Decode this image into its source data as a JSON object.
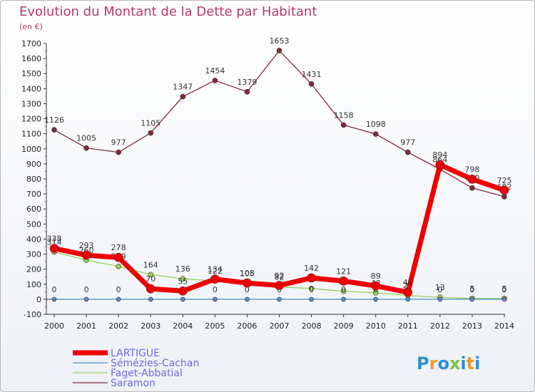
{
  "title": "Evolution du Montant de la Dette par Habitant",
  "subtitle": "(en €)",
  "brand": {
    "text": "Proxiti",
    "colors": [
      "#2d8fd6",
      "#f0972a",
      "#2d8fd6",
      "#7ec242",
      "#2d8fd6",
      "#f0972a",
      "#2d8fd6"
    ]
  },
  "chart_data": {
    "type": "line",
    "x": [
      "2000",
      "2001",
      "2002",
      "2003",
      "2004",
      "2005",
      "2006",
      "2007",
      "2008",
      "2009",
      "2010",
      "2011",
      "2012",
      "2013",
      "2014"
    ],
    "ylim": [
      -100,
      1700
    ],
    "yticks": [
      -100,
      0,
      100,
      200,
      300,
      400,
      500,
      600,
      700,
      800,
      900,
      1000,
      1100,
      1200,
      1300,
      1400,
      1500,
      1600,
      1700
    ],
    "grid": false,
    "legend": "bottom-left",
    "series": [
      {
        "name": "Saramon",
        "color": "#7b2f3b",
        "width": 1.3,
        "marker": 3.5,
        "labels": true,
        "values": [
          1126,
          1005,
          977,
          1105,
          1347,
          1454,
          1379,
          1653,
          1431,
          1158,
          1098,
          977,
          864,
          740,
          682
        ]
      },
      {
        "name": "Faget-Abbatial",
        "color": "#8fd45a",
        "width": 1.3,
        "marker": 3.5,
        "labels": true,
        "values": [
          314,
          260,
          219,
          164,
          136,
          122,
          105,
          82,
          72,
          53,
          43,
          25,
          13,
          5,
          5
        ]
      },
      {
        "name": "Sémézies-Cachan",
        "color": "#4d92c8",
        "width": 1.3,
        "marker": 3,
        "labels": true,
        "values": [
          0,
          0,
          0,
          0,
          0,
          0,
          0,
          0,
          0,
          0,
          0,
          0,
          0,
          0,
          0
        ]
      },
      {
        "name": "LARTIGUE",
        "color": "#ee0000",
        "width": 7,
        "marker": 6,
        "labels": true,
        "values": [
          338,
          293,
          278,
          70,
          55,
          134,
          108,
          92,
          142,
          121,
          89,
          46,
          894,
          798,
          725
        ]
      }
    ]
  }
}
